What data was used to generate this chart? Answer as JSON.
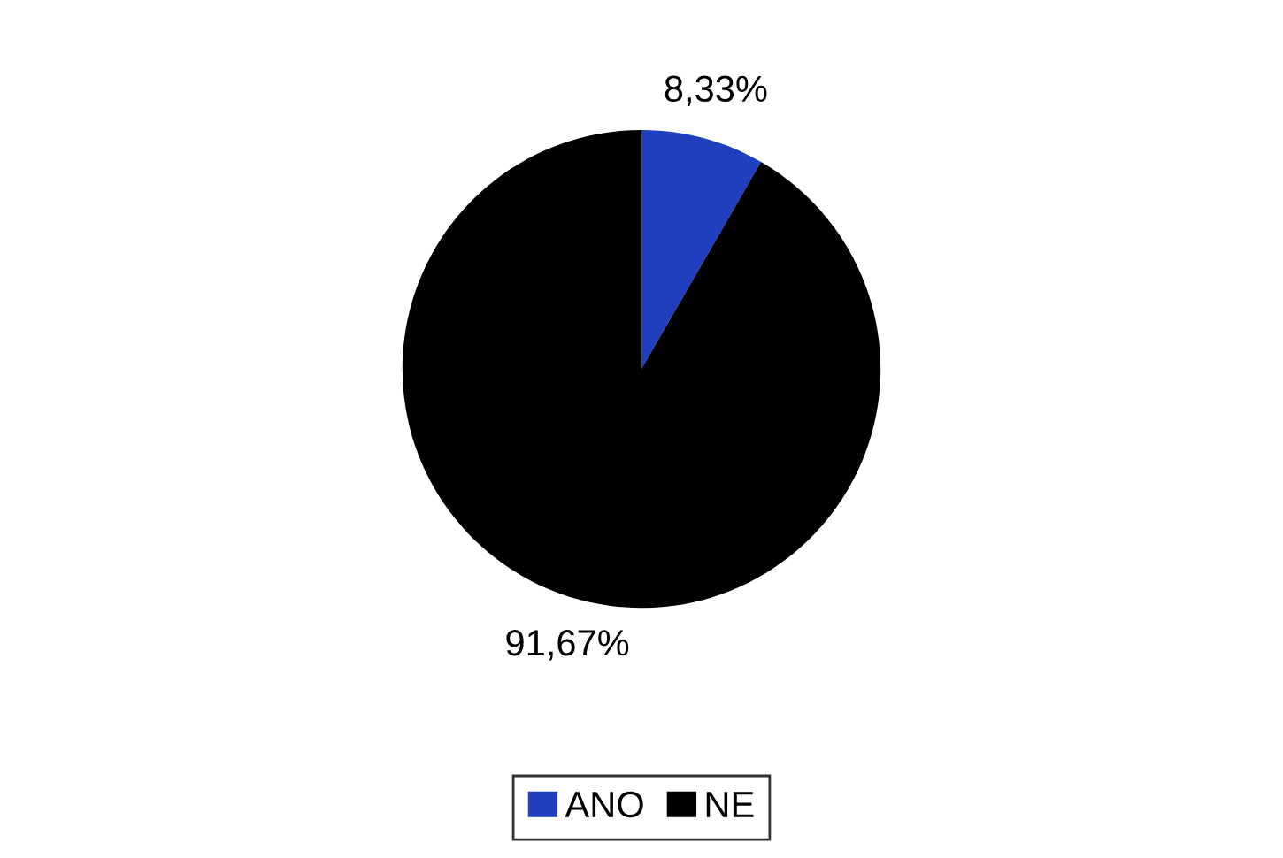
{
  "chart_data": {
    "type": "pie",
    "categories": [
      "ANO",
      "NE"
    ],
    "values": [
      8.33,
      91.67
    ],
    "colors": [
      "#1f3fbf",
      "#000000"
    ],
    "value_labels": [
      "8,33%",
      "91,67%"
    ],
    "legend": "bottom"
  }
}
